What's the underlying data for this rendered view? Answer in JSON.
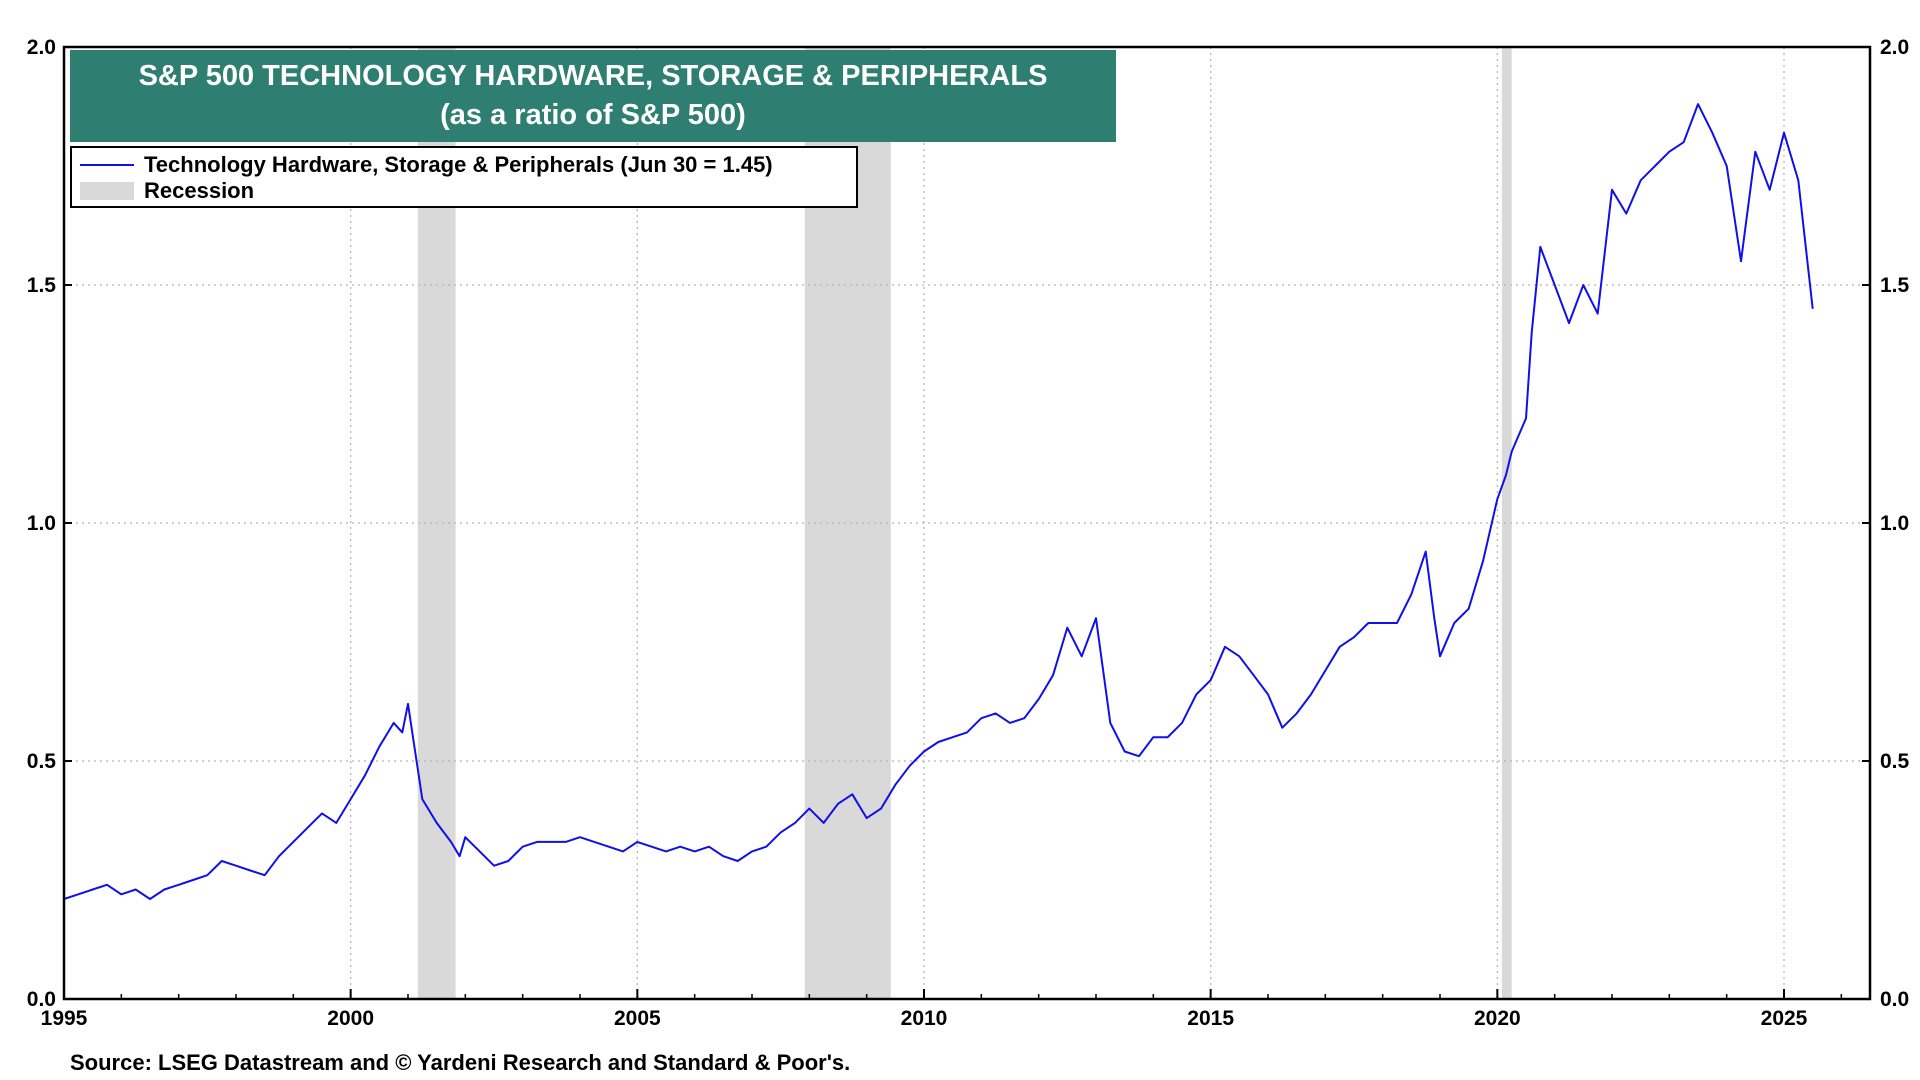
{
  "title": "S&P 500 TECHNOLOGY HARDWARE, STORAGE & PERIPHERALS",
  "subtitle": "(as a ratio of S&P 500)",
  "legend": {
    "series_label": "Technology Hardware, Storage & Peripherals (Jun 30 = 1.45)",
    "recession_label": "Recession"
  },
  "source": "Source: LSEG Datastream and © Yardeni Research and Standard & Poor's.",
  "colors": {
    "series": "#1010e8",
    "recession": "#d9d9d9",
    "title_bg": "#2e7f72"
  },
  "chart_data": {
    "type": "line",
    "title": "S&P 500 TECHNOLOGY HARDWARE, STORAGE & PERIPHERALS",
    "subtitle": "(as a ratio of S&P 500)",
    "xlim": [
      1995,
      2026.5
    ],
    "ylim": [
      0,
      2.0
    ],
    "x_ticks": [
      "1995",
      "2000",
      "2005",
      "2010",
      "2015",
      "2020",
      "2025"
    ],
    "y_ticks_left": [
      "0.0",
      "0.5",
      "1.0",
      "1.5",
      "2.0"
    ],
    "y_ticks_right": [
      "0.0",
      "0.5",
      "1.0",
      "1.5",
      "2.0"
    ],
    "grid": true,
    "legend_position": "top-left",
    "recessions": [
      [
        2001.17,
        2001.83
      ],
      [
        2007.92,
        2009.42
      ],
      [
        2020.08,
        2020.25
      ]
    ],
    "series": [
      {
        "name": "Technology Hardware, Storage & Peripherals (Jun 30 = 1.45)",
        "x": [
          1995.0,
          1995.25,
          1995.5,
          1995.75,
          1996.0,
          1996.25,
          1996.5,
          1996.75,
          1997.0,
          1997.25,
          1997.5,
          1997.75,
          1998.0,
          1998.25,
          1998.5,
          1998.75,
          1999.0,
          1999.25,
          1999.5,
          1999.75,
          2000.0,
          2000.25,
          2000.5,
          2000.75,
          2000.9,
          2001.0,
          2001.1,
          2001.25,
          2001.5,
          2001.75,
          2001.9,
          2002.0,
          2002.25,
          2002.5,
          2002.75,
          2003.0,
          2003.25,
          2003.5,
          2003.75,
          2004.0,
          2004.25,
          2004.5,
          2004.75,
          2005.0,
          2005.25,
          2005.5,
          2005.75,
          2006.0,
          2006.25,
          2006.5,
          2006.75,
          2007.0,
          2007.25,
          2007.5,
          2007.75,
          2008.0,
          2008.25,
          2008.5,
          2008.75,
          2009.0,
          2009.25,
          2009.5,
          2009.75,
          2010.0,
          2010.25,
          2010.5,
          2010.75,
          2011.0,
          2011.25,
          2011.5,
          2011.75,
          2012.0,
          2012.25,
          2012.5,
          2012.75,
          2013.0,
          2013.25,
          2013.5,
          2013.75,
          2014.0,
          2014.25,
          2014.5,
          2014.75,
          2015.0,
          2015.25,
          2015.5,
          2015.75,
          2016.0,
          2016.25,
          2016.5,
          2016.75,
          2017.0,
          2017.25,
          2017.5,
          2017.75,
          2018.0,
          2018.25,
          2018.5,
          2018.75,
          2018.9,
          2019.0,
          2019.25,
          2019.5,
          2019.75,
          2020.0,
          2020.15,
          2020.25,
          2020.5,
          2020.6,
          2020.75,
          2021.0,
          2021.25,
          2021.5,
          2021.75,
          2022.0,
          2022.25,
          2022.5,
          2022.75,
          2023.0,
          2023.25,
          2023.5,
          2023.75,
          2024.0,
          2024.25,
          2024.5,
          2024.75,
          2025.0,
          2025.25,
          2025.5
        ],
        "values": [
          0.21,
          0.22,
          0.23,
          0.24,
          0.22,
          0.23,
          0.21,
          0.23,
          0.24,
          0.25,
          0.26,
          0.29,
          0.28,
          0.27,
          0.26,
          0.3,
          0.33,
          0.36,
          0.39,
          0.37,
          0.42,
          0.47,
          0.53,
          0.58,
          0.56,
          0.62,
          0.54,
          0.42,
          0.37,
          0.33,
          0.3,
          0.34,
          0.31,
          0.28,
          0.29,
          0.32,
          0.33,
          0.33,
          0.33,
          0.34,
          0.33,
          0.32,
          0.31,
          0.33,
          0.32,
          0.31,
          0.32,
          0.31,
          0.32,
          0.3,
          0.29,
          0.31,
          0.32,
          0.35,
          0.37,
          0.4,
          0.37,
          0.41,
          0.43,
          0.38,
          0.4,
          0.45,
          0.49,
          0.52,
          0.54,
          0.55,
          0.56,
          0.59,
          0.6,
          0.58,
          0.59,
          0.63,
          0.68,
          0.78,
          0.72,
          0.8,
          0.58,
          0.52,
          0.51,
          0.55,
          0.55,
          0.58,
          0.64,
          0.67,
          0.74,
          0.72,
          0.68,
          0.64,
          0.57,
          0.6,
          0.64,
          0.69,
          0.74,
          0.76,
          0.79,
          0.79,
          0.79,
          0.85,
          0.94,
          0.8,
          0.72,
          0.79,
          0.82,
          0.92,
          1.05,
          1.1,
          1.15,
          1.22,
          1.4,
          1.58,
          1.5,
          1.42,
          1.5,
          1.44,
          1.7,
          1.65,
          1.72,
          1.75,
          1.78,
          1.8,
          1.88,
          1.82,
          1.75,
          1.55,
          1.78,
          1.7,
          1.82,
          1.72,
          1.45
        ]
      }
    ]
  }
}
